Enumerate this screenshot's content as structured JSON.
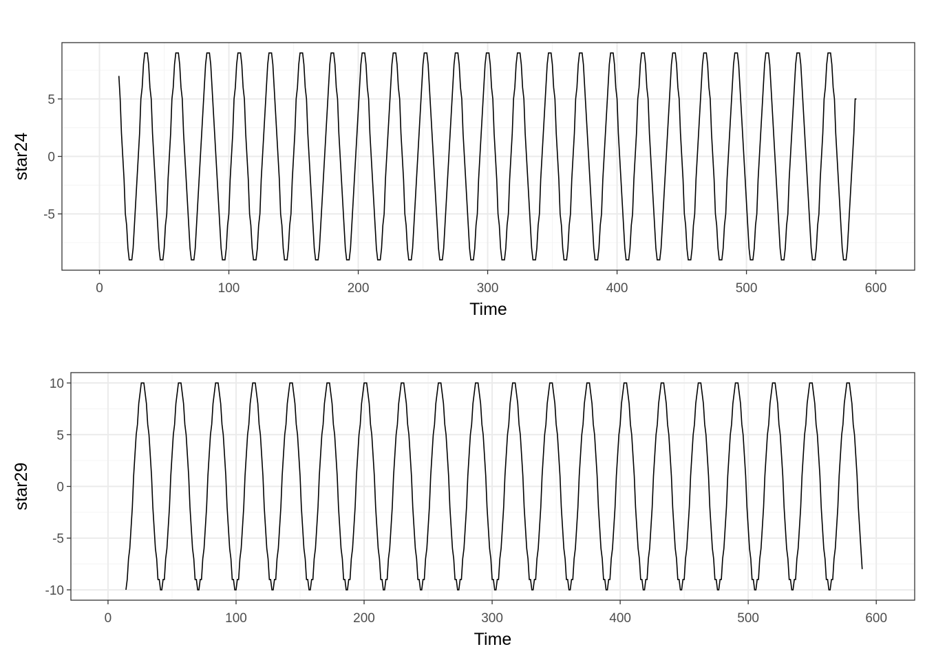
{
  "colors": {
    "background": "#ffffff",
    "panel_border": "#333333",
    "grid_major": "#ebebeb",
    "grid_minor": "#f5f5f5",
    "line": "#000000",
    "tick_text": "#4d4d4d"
  },
  "chart_data": [
    {
      "type": "line",
      "xlabel": "Time",
      "ylabel": "star24",
      "xlim": [
        -29,
        630
      ],
      "ylim": [
        -9.9,
        9.9
      ],
      "x_ticks": [
        0,
        100,
        200,
        300,
        400,
        500,
        600
      ],
      "x_tick_labels": [
        "0",
        "100",
        "200",
        "300",
        "400",
        "500",
        "600"
      ],
      "y_ticks": [
        -5,
        0,
        5
      ],
      "y_tick_labels": [
        "-5",
        "0",
        "5"
      ],
      "grid": true,
      "series": [
        {
          "x_start": 15,
          "x_end": 585,
          "period": 24,
          "amplitude": 9,
          "first_peak_x": 36,
          "y_start": 7,
          "y_end": 5
        }
      ]
    },
    {
      "type": "line",
      "xlabel": "Time",
      "ylabel": "star29",
      "xlim": [
        -29,
        630
      ],
      "ylim": [
        -11,
        11
      ],
      "x_ticks": [
        0,
        100,
        200,
        300,
        400,
        500,
        600
      ],
      "x_tick_labels": [
        "0",
        "100",
        "200",
        "300",
        "400",
        "500",
        "600"
      ],
      "y_ticks": [
        -10,
        -5,
        0,
        5,
        10
      ],
      "y_tick_labels": [
        "-10",
        "-5",
        "0",
        "5",
        "10"
      ],
      "grid": true,
      "series": [
        {
          "x_start": 14,
          "x_end": 589,
          "period": 29,
          "amplitude": 10,
          "first_peak_x": 27,
          "y_start": -10,
          "y_end": -8
        }
      ]
    }
  ]
}
